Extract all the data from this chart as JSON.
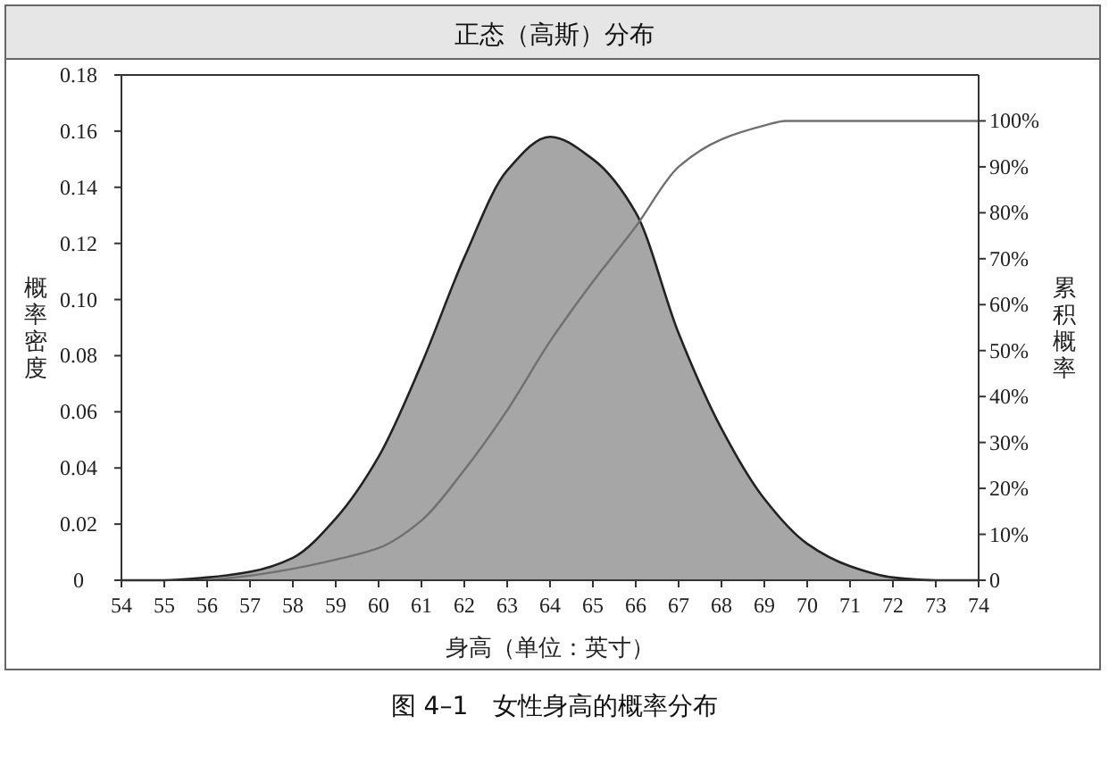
{
  "chart_data": {
    "type": "area",
    "title": "正态（高斯）分布",
    "xlabel": "身高（单位：英寸）",
    "ylabel": "概率密度",
    "y2label": "累积概率",
    "annotations": [
      "图 4–1　女性身高的概率分布"
    ],
    "x": [
      54,
      55,
      56,
      57,
      58,
      59,
      60,
      61,
      62,
      63,
      64,
      65,
      66,
      67,
      68,
      69,
      70,
      71,
      72,
      73,
      74
    ],
    "series": [
      {
        "color": "#a6a6a6",
        "values": [
          0,
          0,
          0.001,
          0.003,
          0.008,
          0.022,
          0.044,
          0.077,
          0.115,
          0.146,
          0.158,
          0.15,
          0.131,
          0.088,
          0.054,
          0.029,
          0.013,
          0.005,
          0.001,
          0,
          0
        ]
      },
      {
        "type": "line",
        "axis": "y2",
        "color": "#707070",
        "x": [
          56,
          57,
          58,
          59,
          60,
          61,
          62,
          63,
          64,
          65,
          66,
          67,
          68,
          69,
          69.5,
          70,
          71,
          72,
          73,
          74
        ],
        "values": [
          0,
          1,
          2.5,
          4.5,
          7,
          13,
          24,
          37,
          52,
          65,
          77,
          90,
          96,
          99,
          100,
          100,
          100,
          100,
          100,
          100
        ]
      }
    ],
    "xlim": [
      54,
      74
    ],
    "xticks": [
      54,
      55,
      56,
      57,
      58,
      59,
      60,
      61,
      62,
      63,
      64,
      65,
      66,
      67,
      68,
      69,
      70,
      71,
      72,
      73,
      74
    ],
    "ylim": [
      0,
      0.18
    ],
    "yticks": [
      0,
      0.02,
      0.04,
      0.06,
      0.08,
      {
        "value": 0.1,
        "label": "0.10"
      },
      0.12,
      0.14,
      0.16,
      0.18
    ],
    "y2lim": [
      0,
      110
    ],
    "y2ticks": [
      0,
      {
        "value": 10,
        "label": "10%"
      },
      {
        "value": 20,
        "label": "20%"
      },
      {
        "value": 30,
        "label": "30%"
      },
      {
        "value": 40,
        "label": "40%"
      },
      {
        "value": 50,
        "label": "50%"
      },
      {
        "value": 60,
        "label": "60%"
      },
      {
        "value": 70,
        "label": "70%"
      },
      {
        "value": 80,
        "label": "80%"
      },
      {
        "value": 90,
        "label": "90%"
      },
      {
        "value": 100,
        "label": "100%"
      }
    ],
    "grid": false,
    "marker": "none",
    "line_style": "solid"
  }
}
